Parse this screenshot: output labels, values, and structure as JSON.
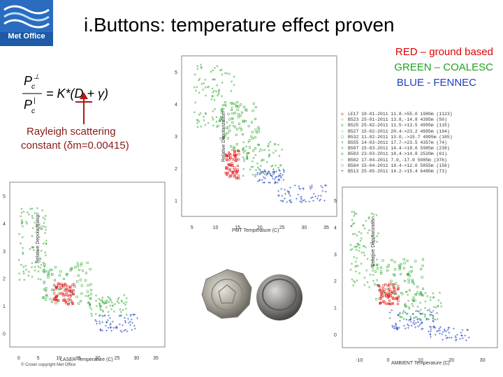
{
  "header": {
    "logo_text": "Met Office",
    "title": "i.Buttons: temperature effect proven"
  },
  "legend_text": {
    "red": "RED – ground based",
    "green": "GREEN – COALESC",
    "blue": "BLUE - FENNEC",
    "red_color": "#e00000",
    "green_color": "#22a022",
    "blue_color": "#2040c0"
  },
  "annotation": {
    "line1": "Rayleigh scattering",
    "line2": "constant (δm=0.00415)"
  },
  "footer": "© Crown copyright Met Office",
  "top_plot": {
    "ylabel": "Relative Depolarization",
    "xlabel": "PMT Temperature (C)",
    "xticks": [
      "5",
      "10",
      "15",
      "20",
      "25",
      "30",
      "35"
    ],
    "yticks": [
      "1",
      "2",
      "3",
      "4",
      "5"
    ]
  },
  "left_plot": {
    "ylabel": "Relative Depolarization",
    "xlabel": "LASER Temperature (C)",
    "xticks": [
      "0",
      "5",
      "10",
      "15",
      "20",
      "25",
      "30",
      "35"
    ],
    "yticks": [
      "0",
      "1",
      "2",
      "3",
      "4",
      "5"
    ]
  },
  "right_plot": {
    "ylabel": "Relative Depolarization",
    "xlabel": "AMBIENT Temperature (C)",
    "xticks": [
      "-10",
      "0",
      "10",
      "20",
      "30"
    ],
    "yticks": [
      "0",
      "1",
      "2",
      "3",
      "4",
      "5"
    ]
  },
  "legend_rows": [
    "LE17 18-01-2011 11.8->55.0 1980m (1123)",
    "B523 25-01-2011 13.8,-14.8 4395m  (50)",
    "B525 25-02-2011 11.5->13.5 4995m (115)",
    "B527 15-02-2011 20.4->23.2 4995m (164)",
    "B532 11-02-2011 13.0,->15.7 4995m (185)",
    "B555 14-03-2011 17.7->23.5 4357m  (74)",
    "B587 15-03-2011 14.4->18.6 5985m (239)",
    "B583 23-03-2011 18.4->14.8 2520m  (61)",
    "B582 17-04-2011 7.0,-17.0 5085m (376)",
    "B584 15-04-2011 19.4->12.0 5855m (156)",
    "B513 25-05-2011 14.2->15.4 6480m  (73)"
  ]
}
